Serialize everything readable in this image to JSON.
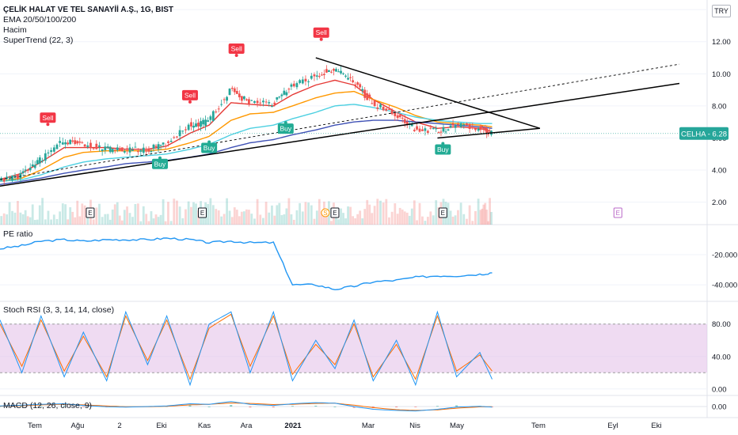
{
  "header": {
    "symbol_title": "ÇELİK HALAT VE TEL SANAYİİ A.Ş., 1G, BIST",
    "indicators": [
      "EMA 20/50/100/200",
      "Hacim",
      "SuperTrend (22, 3)"
    ],
    "currency": "TRY"
  },
  "price_badge": {
    "label": "CELHA - 6.28",
    "color": "#26a69a"
  },
  "colors": {
    "ema20": "#e53935",
    "ema50": "#ff9800",
    "ema100": "#4dd0e1",
    "ema200": "#3f51b5",
    "supertrend_up": "#22ab94",
    "supertrend_down": "#f23645",
    "pe_line": "#2196f3",
    "stoch_k": "#2196f3",
    "stoch_d": "#ff6d00",
    "stoch_band": "#e1bee7",
    "macd_line": "#2196f3",
    "macd_signal": "#ff6d00",
    "trendline": "#000000",
    "candle_up": "#26a69a",
    "candle_down": "#ef5350"
  },
  "time_axis": [
    "Tem",
    "Ağu",
    "2",
    "Eki",
    "Kas",
    "Ara",
    "2021",
    "Mar",
    "Nis",
    "May",
    "Tem",
    "Eyl",
    "Eki"
  ],
  "chart_data": [
    {
      "type": "line",
      "title": "ÇELİK HALAT VE TEL SANAYİİ A.Ş., 1G, BIST",
      "ylabel": "TRY",
      "yticks": [
        "2.00",
        "4.00",
        "6.00",
        "8.00",
        "10.00",
        "12.00",
        "14.00"
      ],
      "ylim": [
        0.6,
        14.6
      ],
      "x_dates": [
        "2020-06-15",
        "2020-07-01",
        "2020-07-15",
        "2020-08-01",
        "2020-08-15",
        "2020-09-01",
        "2020-09-15",
        "2020-10-01",
        "2020-10-15",
        "2020-11-01",
        "2020-11-15",
        "2020-12-01",
        "2020-12-15",
        "2021-01-01",
        "2021-01-15",
        "2021-02-01",
        "2021-02-15",
        "2021-03-01",
        "2021-03-15",
        "2021-04-01",
        "2021-04-15",
        "2021-05-01",
        "2021-05-15",
        "2021-06-01",
        "2021-06-10"
      ],
      "series": [
        {
          "name": "close",
          "values": [
            3.3,
            3.7,
            4.6,
            5.8,
            5.6,
            5.3,
            5.2,
            5.3,
            5.6,
            6.8,
            7.0,
            9.0,
            8.2,
            8.1,
            9.2,
            9.9,
            10.3,
            9.5,
            8.2,
            7.4,
            6.6,
            6.4,
            6.8,
            6.6,
            6.28
          ]
        },
        {
          "name": "EMA 20",
          "values": [
            3.4,
            3.8,
            4.5,
            5.4,
            5.4,
            5.4,
            5.3,
            5.3,
            5.5,
            6.3,
            6.8,
            8.2,
            8.1,
            8.0,
            8.7,
            9.3,
            9.6,
            9.3,
            8.4,
            7.6,
            7.0,
            6.6,
            6.7,
            6.6,
            6.4
          ]
        },
        {
          "name": "EMA 50",
          "values": [
            3.3,
            3.5,
            4.0,
            4.8,
            5.1,
            5.2,
            5.2,
            5.2,
            5.3,
            5.7,
            6.1,
            7.1,
            7.5,
            7.6,
            8.0,
            8.5,
            8.8,
            8.9,
            8.4,
            7.9,
            7.4,
            7.0,
            6.9,
            6.8,
            6.7
          ]
        },
        {
          "name": "EMA 100",
          "values": [
            3.3,
            3.4,
            3.7,
            4.2,
            4.5,
            4.7,
            4.8,
            4.9,
            5.0,
            5.3,
            5.6,
            6.2,
            6.6,
            6.8,
            7.2,
            7.6,
            8.0,
            8.1,
            7.9,
            7.6,
            7.3,
            7.1,
            7.0,
            6.9,
            6.9
          ]
        },
        {
          "name": "EMA 200",
          "values": [
            3.1,
            3.3,
            3.5,
            3.8,
            4.0,
            4.2,
            4.4,
            4.5,
            4.6,
            4.8,
            5.0,
            5.4,
            5.7,
            5.9,
            6.2,
            6.5,
            6.8,
            7.0,
            7.1,
            7.1,
            7.0,
            6.9,
            6.8,
            6.7,
            6.6
          ]
        }
      ],
      "supertrend_signals": [
        {
          "label": "Sell",
          "date": "2020-07-20",
          "price": 6.7
        },
        {
          "label": "Buy",
          "date": "2020-10-10",
          "price": 4.9
        },
        {
          "label": "Sell",
          "date": "2020-11-01",
          "price": 8.1
        },
        {
          "label": "Buy",
          "date": "2020-11-15",
          "price": 5.9
        },
        {
          "label": "Sell",
          "date": "2020-12-05",
          "price": 11.0
        },
        {
          "label": "Buy",
          "date": "2021-01-10",
          "price": 7.1
        },
        {
          "label": "Sell",
          "date": "2021-02-05",
          "price": 12.0
        },
        {
          "label": "Buy",
          "date": "2021-05-05",
          "price": 5.8
        }
      ],
      "earnings_marks": [
        "E",
        "E",
        "E",
        "E",
        "E"
      ],
      "dividend_mark": "S"
    },
    {
      "type": "line",
      "title": "PE ratio",
      "yticks": [
        "-20.000",
        "-40.000"
      ],
      "ylim": [
        -51,
        0
      ],
      "x_dates": [
        "2020-06-15",
        "2020-07-01",
        "2020-07-15",
        "2020-08-01",
        "2020-08-15",
        "2020-09-01",
        "2020-09-15",
        "2020-10-01",
        "2020-10-15",
        "2020-11-01",
        "2020-11-15",
        "2020-12-01",
        "2020-12-15",
        "2021-01-01",
        "2021-01-15",
        "2021-02-01",
        "2021-02-15",
        "2021-03-01",
        "2021-03-15",
        "2021-04-01",
        "2021-04-15",
        "2021-05-01",
        "2021-05-15",
        "2021-06-01",
        "2021-06-10"
      ],
      "values": [
        -16,
        -14,
        -11,
        -10,
        -11,
        -10,
        -10,
        -10,
        -9,
        -10,
        -12,
        -11,
        -12,
        -12,
        -40,
        -40,
        -43,
        -41,
        -38,
        -37,
        -35,
        -34,
        -34,
        -33,
        -32
      ]
    },
    {
      "type": "line",
      "title": "Stoch RSI (3, 3, 14, 14, close)",
      "yticks": [
        "0.00",
        "40.00",
        "80.00"
      ],
      "ylim": [
        -8,
        108
      ],
      "band": [
        20,
        80
      ],
      "x_dates": [
        "2020-06-15",
        "2020-07-01",
        "2020-07-15",
        "2020-08-01",
        "2020-08-15",
        "2020-09-01",
        "2020-09-15",
        "2020-10-01",
        "2020-10-15",
        "2020-11-01",
        "2020-11-15",
        "2020-12-01",
        "2020-12-15",
        "2021-01-01",
        "2021-01-15",
        "2021-02-01",
        "2021-02-15",
        "2021-03-01",
        "2021-03-15",
        "2021-04-01",
        "2021-04-15",
        "2021-05-01",
        "2021-05-15",
        "2021-06-01",
        "2021-06-10"
      ],
      "series": [
        {
          "name": "%K",
          "values": [
            85,
            20,
            90,
            15,
            70,
            10,
            95,
            30,
            90,
            5,
            80,
            95,
            20,
            95,
            10,
            60,
            25,
            85,
            10,
            60,
            5,
            95,
            15,
            45,
            12
          ]
        },
        {
          "name": "%D",
          "values": [
            80,
            28,
            85,
            22,
            65,
            15,
            90,
            35,
            85,
            12,
            75,
            92,
            28,
            90,
            18,
            55,
            30,
            80,
            15,
            55,
            12,
            90,
            22,
            42,
            22
          ]
        }
      ]
    },
    {
      "type": "line",
      "title": "MACD (12, 26, close, 9)",
      "yticks": [
        "0.00"
      ],
      "ylim": [
        -1,
        1
      ],
      "x_dates": [
        "2020-06-15",
        "2020-07-01",
        "2020-07-15",
        "2020-08-01",
        "2020-08-15",
        "2020-09-01",
        "2020-09-15",
        "2020-10-01",
        "2020-10-15",
        "2020-11-01",
        "2020-11-15",
        "2020-12-01",
        "2020-12-15",
        "2021-01-01",
        "2021-01-15",
        "2021-02-01",
        "2021-02-15",
        "2021-03-01",
        "2021-03-15",
        "2021-04-01",
        "2021-04-15",
        "2021-05-01",
        "2021-05-15",
        "2021-06-01",
        "2021-06-10"
      ],
      "series": [
        {
          "name": "MACD",
          "values": [
            0.05,
            0.12,
            0.2,
            0.25,
            0.1,
            -0.02,
            -0.05,
            0.0,
            0.05,
            0.25,
            0.2,
            0.45,
            0.2,
            0.1,
            0.25,
            0.35,
            0.3,
            0.0,
            -0.25,
            -0.35,
            -0.4,
            -0.25,
            -0.05,
            0.02,
            -0.05
          ]
        },
        {
          "name": "Signal",
          "values": [
            0.03,
            0.08,
            0.15,
            0.2,
            0.15,
            0.05,
            -0.02,
            -0.02,
            0.02,
            0.15,
            0.2,
            0.32,
            0.28,
            0.18,
            0.2,
            0.28,
            0.3,
            0.12,
            -0.1,
            -0.28,
            -0.35,
            -0.3,
            -0.15,
            -0.03,
            -0.02
          ]
        }
      ]
    }
  ]
}
